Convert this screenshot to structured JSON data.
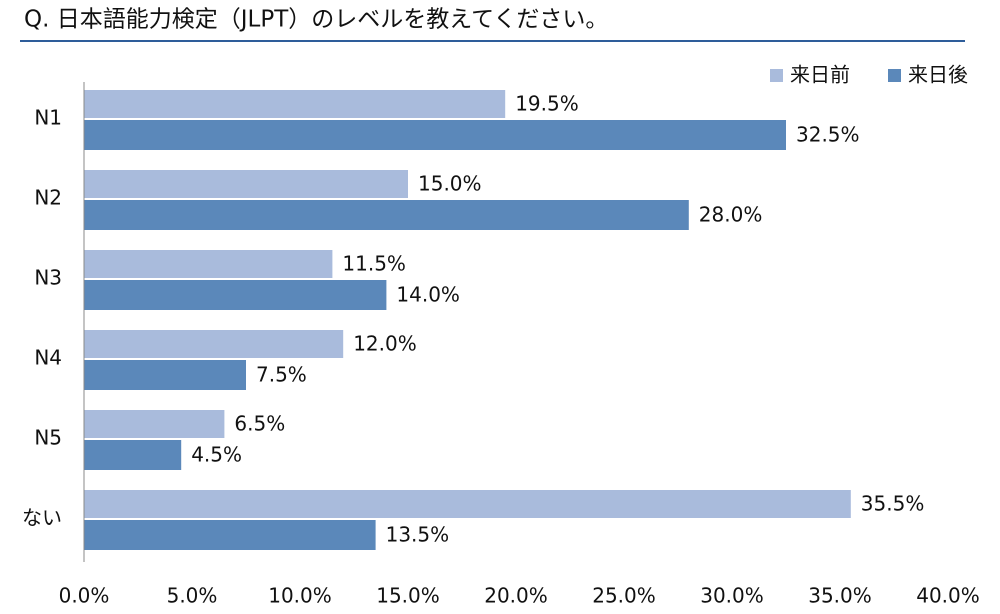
{
  "chart_data": {
    "type": "bar",
    "orientation": "horizontal",
    "title": "Q. 日本語能力検定（JLPT）のレベルを教えてください。",
    "categories": [
      "N1",
      "N2",
      "N3",
      "N4",
      "N5",
      "ない"
    ],
    "series": [
      {
        "name": "来日前",
        "color": "#a9bbdc",
        "values": [
          19.5,
          15.0,
          11.5,
          12.0,
          6.5,
          35.5
        ],
        "value_labels": [
          "19.5%",
          "15.0%",
          "11.5%",
          "12.0%",
          "6.5%",
          "35.5%"
        ]
      },
      {
        "name": "来日後",
        "color": "#5b88ba",
        "values": [
          32.5,
          28.0,
          14.0,
          7.5,
          4.5,
          13.5
        ],
        "value_labels": [
          "32.5%",
          "28.0%",
          "14.0%",
          "7.5%",
          "4.5%",
          "13.5%"
        ]
      }
    ],
    "xlim": [
      0,
      40
    ],
    "xticks": [
      {
        "value": 0,
        "label": "0.0%"
      },
      {
        "value": 5,
        "label": "5.0%"
      },
      {
        "value": 10,
        "label": "10.0%"
      },
      {
        "value": 15,
        "label": "15.0%"
      },
      {
        "value": 20,
        "label": "20.0%"
      },
      {
        "value": 25,
        "label": "25.0%"
      },
      {
        "value": 30,
        "label": "30.0%"
      },
      {
        "value": 35,
        "label": "35.0%"
      },
      {
        "value": 40,
        "label": "40.0%"
      }
    ],
    "grid": false,
    "legend": "top-right"
  }
}
